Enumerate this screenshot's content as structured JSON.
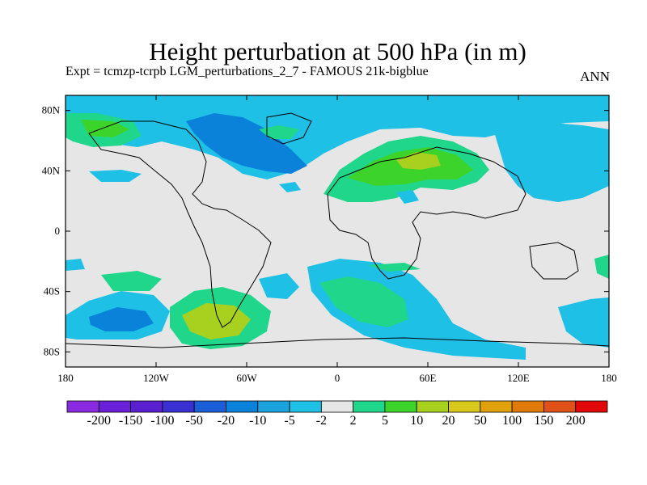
{
  "title": "Height perturbation at 500 hPa (in m)",
  "subtitle": "Expt = tcmzp-tcrpb    LGM_perturbations_2_7 - FAMOUS 21k-bigblue",
  "season": "ANN",
  "map": {
    "lon_ticks": [
      "180",
      "120W",
      "60W",
      "0",
      "60E",
      "120E",
      "180"
    ],
    "lat_ticks": [
      "80N",
      "40N",
      "0",
      "40S",
      "80S"
    ],
    "background_color": "#e6e6e6"
  },
  "colorbar": {
    "colors": [
      "#8a2be2",
      "#6a1fd9",
      "#5a1fcf",
      "#3a2fd0",
      "#1a5fd7",
      "#0a82d9",
      "#1aa3dc",
      "#1ec0e6",
      "#e6e6e6",
      "#1fd68a",
      "#3cd42a",
      "#a8d11f",
      "#d8c81c",
      "#e0a10d",
      "#e07a0a",
      "#e0511a",
      "#e00808"
    ],
    "labels": [
      "-200",
      "-150",
      "-100",
      "-50",
      "-20",
      "-10",
      "-5",
      "-2",
      "2",
      "5",
      "10",
      "20",
      "50",
      "100",
      "150",
      "200"
    ]
  }
}
